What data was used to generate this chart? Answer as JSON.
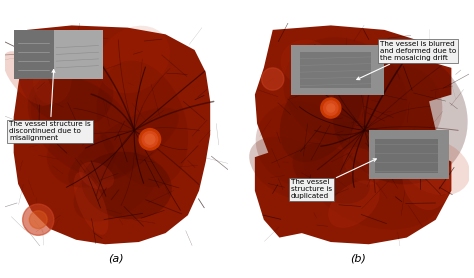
{
  "figure_width": 4.74,
  "figure_height": 2.78,
  "dpi": 100,
  "bg_color": "#ffffff",
  "label_a": "(a)",
  "label_b": "(b)",
  "annotation_a": "The vessel structure is\ndiscontinued due to\nmisalignment",
  "annotation_b1": "The vessel is blurred\nand deformed due to\nthe mosaicing drift",
  "annotation_b2": "The vessel\nstructure is\nduplicated",
  "retina_base": "#7a1200",
  "retina_dark": "#3a0500",
  "retina_mid": "#8b1800",
  "retina_light": "#aa2500",
  "retina_bright": "#c03515",
  "gray_patch": "#909090",
  "gray_patch_dark": "#707070",
  "white_patch": "#f5f5f5",
  "text_color": "#000000",
  "fontsize_label": 8,
  "fontsize_annotation": 5.2,
  "vessel_color": "#2a0300",
  "vessel_color2": "#1a0200"
}
